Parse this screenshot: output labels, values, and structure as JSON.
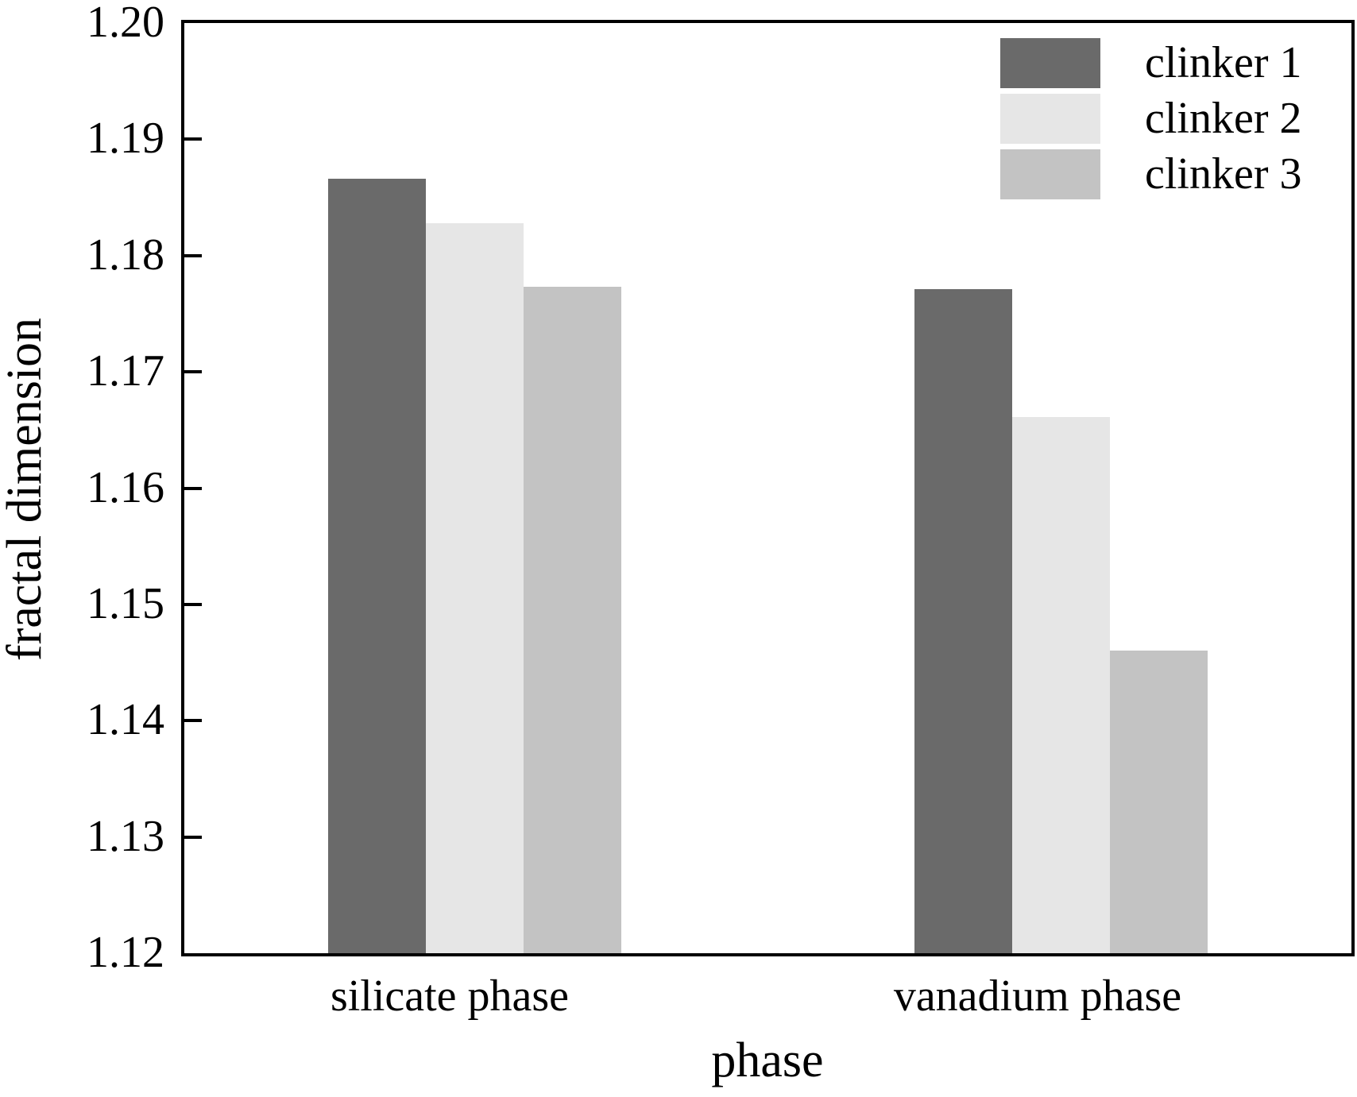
{
  "chart_data": {
    "type": "bar",
    "title": "",
    "xlabel": "phase",
    "ylabel": "fractal dimension",
    "categories": [
      "silicate phase",
      "vanadium phase"
    ],
    "series": [
      {
        "name": "clinker 1",
        "color": "#6a6a6a",
        "values": [
          1.1866,
          1.1771
        ]
      },
      {
        "name": "clinker 2",
        "color": "#e6e6e6",
        "values": [
          1.1828,
          1.1661
        ]
      },
      {
        "name": "clinker 3",
        "color": "#c3c3c3",
        "values": [
          1.1773,
          1.146
        ]
      }
    ],
    "ylim": [
      1.12,
      1.2
    ],
    "ytick_step": 0.01,
    "yticks": [
      "1.12",
      "1.13",
      "1.14",
      "1.15",
      "1.16",
      "1.17",
      "1.18",
      "1.19",
      "1.20"
    ],
    "grid": false,
    "legend_position": "top-right",
    "axis_color": "#000000",
    "background_color": "#ffffff"
  }
}
